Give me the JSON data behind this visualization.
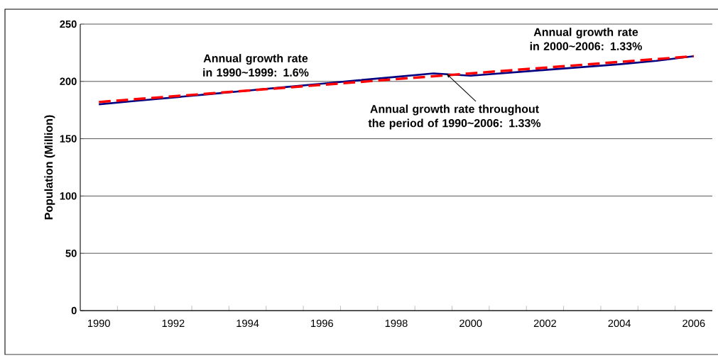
{
  "chart_data": {
    "type": "line",
    "ylabel": "Population (Million)",
    "categories": [
      "1990",
      null,
      "1992",
      null,
      "1994",
      null,
      "1996",
      null,
      "1998",
      null,
      "2000",
      null,
      "2002",
      null,
      "2004",
      null,
      "2006"
    ],
    "series": [
      {
        "color": "#000080",
        "line_style": "solid",
        "values": [
          180,
          183,
          186,
          189,
          192,
          195,
          198,
          201,
          204,
          207,
          205,
          207.5,
          210,
          212.5,
          215,
          218,
          222
        ]
      },
      {
        "color": "#ff0000",
        "line_style": "dashed",
        "values": [
          182,
          184.5,
          187,
          189.5,
          192,
          194.5,
          197,
          199.5,
          202,
          204.5,
          207,
          209.5,
          212,
          214.5,
          217,
          219.5,
          222
        ]
      }
    ],
    "ylim": [
      0,
      250
    ],
    "yticks": [
      0,
      50,
      100,
      150,
      200,
      250
    ],
    "grid": "y",
    "marker": "none",
    "annotations": [
      "Annual growth rate in 1990~1999:  1.6%",
      "Annual growth rate in 2000~2006:  1.33%",
      {
        "text": "Annual growth rate throughout the period of 1990~2006:  1.33%",
        "y": 207
      }
    ]
  }
}
